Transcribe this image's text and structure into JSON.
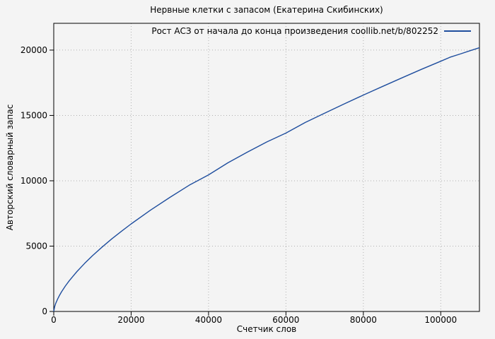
{
  "colors": {
    "background": "#f4f4f4",
    "plot_border": "#000000",
    "grid": "#b0b0b0",
    "series_line": "#1f4e9e",
    "text": "#000000"
  },
  "chart_data": {
    "type": "line",
    "title": "Нервные клетки с запасом (Екатерина Скибинских)",
    "xlabel": "Счетчик слов",
    "ylabel": "Авторский словарный запас",
    "xlim": [
      0,
      110000
    ],
    "ylim": [
      0,
      22050
    ],
    "x_ticks": [
      0,
      20000,
      40000,
      60000,
      80000,
      100000
    ],
    "y_ticks": [
      0,
      5000,
      10000,
      15000,
      20000
    ],
    "grid": true,
    "legend_position": "top-right-inside",
    "series": [
      {
        "name": "Рост АСЗ от начала до конца произведения coollib.net/b/802252",
        "color": "#1f4e9e",
        "points": [
          [
            0,
            0
          ],
          [
            250,
            385
          ],
          [
            500,
            605
          ],
          [
            1000,
            950
          ],
          [
            1500,
            1235
          ],
          [
            2000,
            1490
          ],
          [
            3000,
            1945
          ],
          [
            4000,
            2345
          ],
          [
            5000,
            2710
          ],
          [
            6000,
            3055
          ],
          [
            8000,
            3685
          ],
          [
            10000,
            4265
          ],
          [
            12500,
            4930
          ],
          [
            15000,
            5555
          ],
          [
            17500,
            6140
          ],
          [
            20000,
            6700
          ],
          [
            25000,
            7750
          ],
          [
            30000,
            8730
          ],
          [
            35000,
            9655
          ],
          [
            40000,
            10450
          ],
          [
            45000,
            11375
          ],
          [
            50000,
            12185
          ],
          [
            55000,
            12965
          ],
          [
            60000,
            13650
          ],
          [
            65000,
            14460
          ],
          [
            70000,
            15175
          ],
          [
            75000,
            15875
          ],
          [
            80000,
            16560
          ],
          [
            85000,
            17225
          ],
          [
            90000,
            17880
          ],
          [
            95000,
            18525
          ],
          [
            100000,
            19150
          ],
          [
            102500,
            19465
          ],
          [
            105000,
            19700
          ],
          [
            107500,
            19950
          ],
          [
            110000,
            20180
          ]
        ]
      }
    ]
  }
}
